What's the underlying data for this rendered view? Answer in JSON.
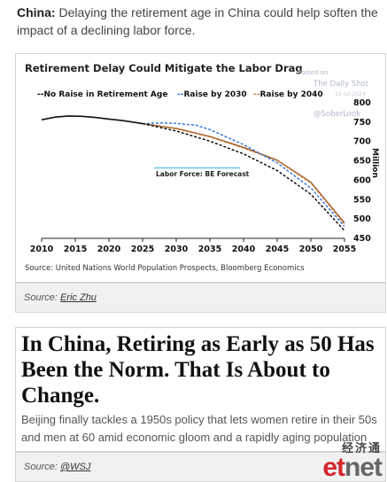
{
  "intro": {
    "bold": "China:",
    "text": " Delaying the retirement age in China could help soften the impact of a declining labor force."
  },
  "chart_data": {
    "type": "line",
    "title": "Retirement Delay Could Mitigate the Labor Drag",
    "ylabel": "Million",
    "xlim": [
      2010,
      2055
    ],
    "ylim": [
      450,
      800
    ],
    "x_ticks": [
      2010,
      2015,
      2020,
      2025,
      2030,
      2035,
      2040,
      2045,
      2050,
      2055
    ],
    "y_ticks": [
      450,
      500,
      550,
      600,
      650,
      700,
      750,
      800
    ],
    "legend_position": "top",
    "annotation": "Labor Force: BE Forecast",
    "source": "Source: United Nations World Population Prospects, Bloomberg Economics",
    "watermark": [
      "Posted on",
      "The Daily Shot",
      "19-Jul-2024",
      "@SoberLook"
    ],
    "colors": {
      "base": "#000000",
      "r2030": "#2e6fd8",
      "r2040": "#c0772a",
      "hist": "#111111",
      "forecast_marker": "#6ec6ef"
    },
    "series": [
      {
        "name": "No Raise in Retirement Age",
        "style": "dashed",
        "color": "#000000",
        "x": [
          2025,
          2030,
          2035,
          2040,
          2045,
          2050,
          2055
        ],
        "y": [
          746,
          727,
          701,
          668,
          625,
          564,
          470
        ]
      },
      {
        "name": "Raise by 2030",
        "style": "dashed",
        "color": "#2e6fd8",
        "x": [
          2025,
          2028,
          2030,
          2033,
          2035,
          2040,
          2045,
          2050,
          2055
        ],
        "y": [
          746,
          748,
          747,
          742,
          731,
          692,
          645,
          580,
          481
        ]
      },
      {
        "name": "Raise by 2040",
        "style": "dashed",
        "color": "#c0772a",
        "x": [
          2025,
          2030,
          2035,
          2040,
          2045,
          2050,
          2055
        ],
        "y": [
          746,
          733,
          712,
          683,
          651,
          593,
          487
        ]
      },
      {
        "name": "",
        "style": "solid-history",
        "color": "#111111",
        "x": [
          2010,
          2012,
          2014,
          2016,
          2018,
          2020,
          2022,
          2024,
          2025
        ],
        "y": [
          756,
          763,
          766,
          765,
          762,
          758,
          754,
          749,
          746
        ]
      },
      {
        "name": "",
        "style": "solid-projection",
        "color": "#a0522d",
        "x": [
          2025,
          2030,
          2035,
          2040,
          2045,
          2050,
          2055
        ],
        "y": [
          746,
          734,
          713,
          685,
          652,
          595,
          490
        ]
      }
    ]
  },
  "caption1": {
    "prefix": "Source: ",
    "link": "Eric Zhu"
  },
  "article": {
    "headline": "In China, Retiring as Early as 50 Has Been the Norm. That Is About to Change.",
    "subhead": "Beijing finally tackles a 1950s policy that lets women retire in their 50s and men at 60 amid economic gloom and a rapidly aging population"
  },
  "caption2": {
    "prefix": "Source: ",
    "link": "@WSJ"
  },
  "etnet": {
    "chinese": "经济通",
    "logo_e": "et",
    "logo_rest": "net"
  }
}
